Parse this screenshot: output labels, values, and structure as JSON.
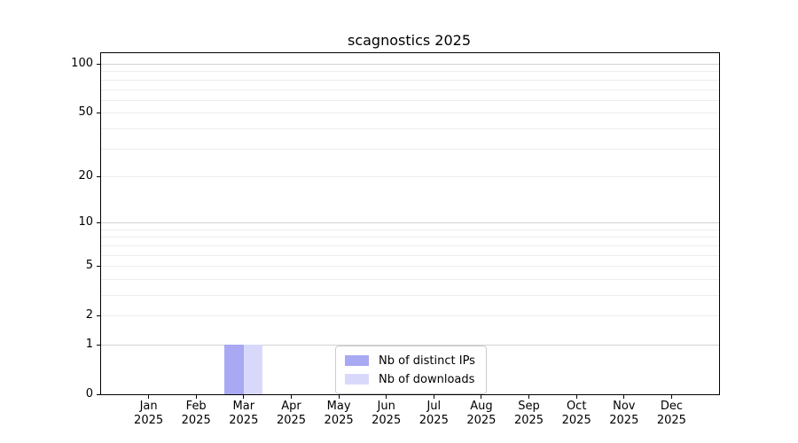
{
  "figure": {
    "title": "scagnostics 2025"
  },
  "chart_data": {
    "type": "bar",
    "title": "scagnostics 2025",
    "categories": [
      "Jan",
      "Feb",
      "Mar",
      "Apr",
      "May",
      "Jun",
      "Jul",
      "Aug",
      "Sep",
      "Oct",
      "Nov",
      "Dec"
    ],
    "x_year_line": "2025",
    "series": [
      {
        "name": "Nb of distinct IPs",
        "color": "#a8a8f3",
        "values": [
          0,
          0,
          1,
          0,
          0,
          0,
          0,
          0,
          0,
          0,
          0,
          0
        ]
      },
      {
        "name": "Nb of downloads",
        "color": "#d8d9fa",
        "values": [
          0,
          0,
          1,
          0,
          0,
          0,
          0,
          0,
          0,
          0,
          0,
          0
        ]
      }
    ],
    "xlabel": "",
    "ylabel": "",
    "y_scale": "log1p",
    "y_ticks": [
      0,
      1,
      2,
      5,
      10,
      20,
      50,
      100
    ],
    "ylim": [
      0,
      116
    ],
    "grid": "horizontal",
    "grid_major_values": [
      1,
      10,
      100
    ],
    "grid_minor_values": [
      2,
      3,
      4,
      5,
      6,
      7,
      8,
      9,
      20,
      30,
      40,
      50,
      60,
      70,
      80,
      90
    ],
    "legend_position": "lower center"
  },
  "colors": {
    "bar_distinct_ips": "#a8a8f3",
    "bar_downloads": "#d8d9fa",
    "grid_minor": "#ededed",
    "grid_major": "#d2d2d2",
    "spine": "#000000",
    "legend_border": "#cccccc",
    "background": "#ffffff"
  }
}
